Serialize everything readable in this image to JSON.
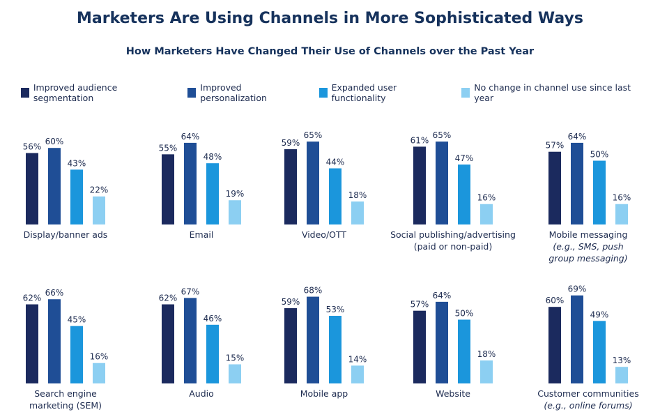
{
  "chart_data": {
    "type": "bar",
    "title": "Marketers Are Using Channels in More Sophisticated Ways",
    "subtitle": "How Marketers Have Changed Their Use of Channels over the Past Year",
    "ylim": [
      0,
      100
    ],
    "series": [
      {
        "name": "Improved audience segmentation",
        "color": "#1b2a5e"
      },
      {
        "name": "Improved personalization",
        "color": "#1f4e96"
      },
      {
        "name": "Expanded user functionality",
        "color": "#1b96dc"
      },
      {
        "name": "No change in channel use since last year",
        "color": "#8ccff2"
      }
    ],
    "panels": [
      {
        "category": [
          "Display/banner ads"
        ],
        "italic": [
          false
        ],
        "values": [
          56,
          60,
          43,
          22
        ],
        "labels": [
          "56%",
          "60%",
          "43%",
          "22%"
        ]
      },
      {
        "category": [
          "Email"
        ],
        "italic": [
          false
        ],
        "values": [
          55,
          64,
          48,
          19
        ],
        "labels": [
          "55%",
          "64%",
          "48%",
          "19%"
        ]
      },
      {
        "category": [
          "Video/OTT"
        ],
        "italic": [
          false
        ],
        "values": [
          59,
          65,
          44,
          18
        ],
        "labels": [
          "59%",
          "65%",
          "44%",
          "18%"
        ]
      },
      {
        "category": [
          "Social publishing/advertising",
          "(paid or non-paid)"
        ],
        "italic": [
          false,
          false
        ],
        "values": [
          61,
          65,
          47,
          16
        ],
        "labels": [
          "61%",
          "65%",
          "47%",
          "16%"
        ]
      },
      {
        "category": [
          "Mobile messaging",
          "(e.g., SMS, push",
          "group messaging)"
        ],
        "italic": [
          false,
          true,
          true
        ],
        "values": [
          57,
          64,
          50,
          16
        ],
        "labels": [
          "57%",
          "64%",
          "50%",
          "16%"
        ]
      },
      {
        "category": [
          "Search engine",
          "marketing (SEM)"
        ],
        "italic": [
          false,
          false
        ],
        "values": [
          62,
          66,
          45,
          16
        ],
        "labels": [
          "62%",
          "66%",
          "45%",
          "16%"
        ]
      },
      {
        "category": [
          "Audio"
        ],
        "italic": [
          false
        ],
        "values": [
          62,
          67,
          46,
          15
        ],
        "labels": [
          "62%",
          "67%",
          "46%",
          "15%"
        ]
      },
      {
        "category": [
          "Mobile app"
        ],
        "italic": [
          false
        ],
        "values": [
          59,
          68,
          53,
          14
        ],
        "labels": [
          "59%",
          "68%",
          "53%",
          "14%"
        ]
      },
      {
        "category": [
          "Website"
        ],
        "italic": [
          false
        ],
        "values": [
          57,
          64,
          50,
          18
        ],
        "labels": [
          "57%",
          "64%",
          "50%",
          "18%"
        ]
      },
      {
        "category": [
          "Customer communities",
          "(e.g., online forums)"
        ],
        "italic": [
          false,
          true
        ],
        "values": [
          60,
          69,
          49,
          13
        ],
        "labels": [
          "60%",
          "69%",
          "49%",
          "13%"
        ]
      }
    ]
  }
}
